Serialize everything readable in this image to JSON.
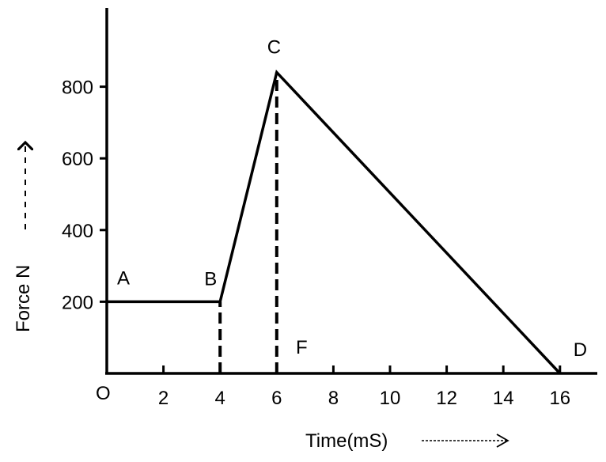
{
  "chart_data": {
    "type": "line",
    "xlabel": "Time(mS)",
    "ylabel": "Force N",
    "x_ticks": [
      2,
      4,
      6,
      8,
      10,
      12,
      14,
      16
    ],
    "y_ticks": [
      200,
      400,
      600,
      800
    ],
    "origin_label": "O",
    "xlim": [
      0,
      17.5
    ],
    "ylim": [
      0,
      1000
    ],
    "grid": false,
    "series": [
      {
        "points": [
          {
            "x": 0,
            "y": 200
          },
          {
            "x": 4,
            "y": 200
          },
          {
            "x": 6,
            "y": 840
          },
          {
            "x": 16,
            "y": 0
          }
        ]
      }
    ],
    "dashed_lines": [
      {
        "x": 4,
        "y_top": 200
      },
      {
        "x": 6,
        "y_top": 840
      }
    ],
    "point_labels": [
      {
        "text": "A",
        "x": 0.7,
        "y": 200
      },
      {
        "text": "B",
        "x": 4,
        "y": 200
      },
      {
        "text": "C",
        "x": 6,
        "y": 840
      },
      {
        "text": "D",
        "x": 16,
        "y": 0
      },
      {
        "text": "F",
        "x": 6.9,
        "y": 0
      }
    ]
  }
}
